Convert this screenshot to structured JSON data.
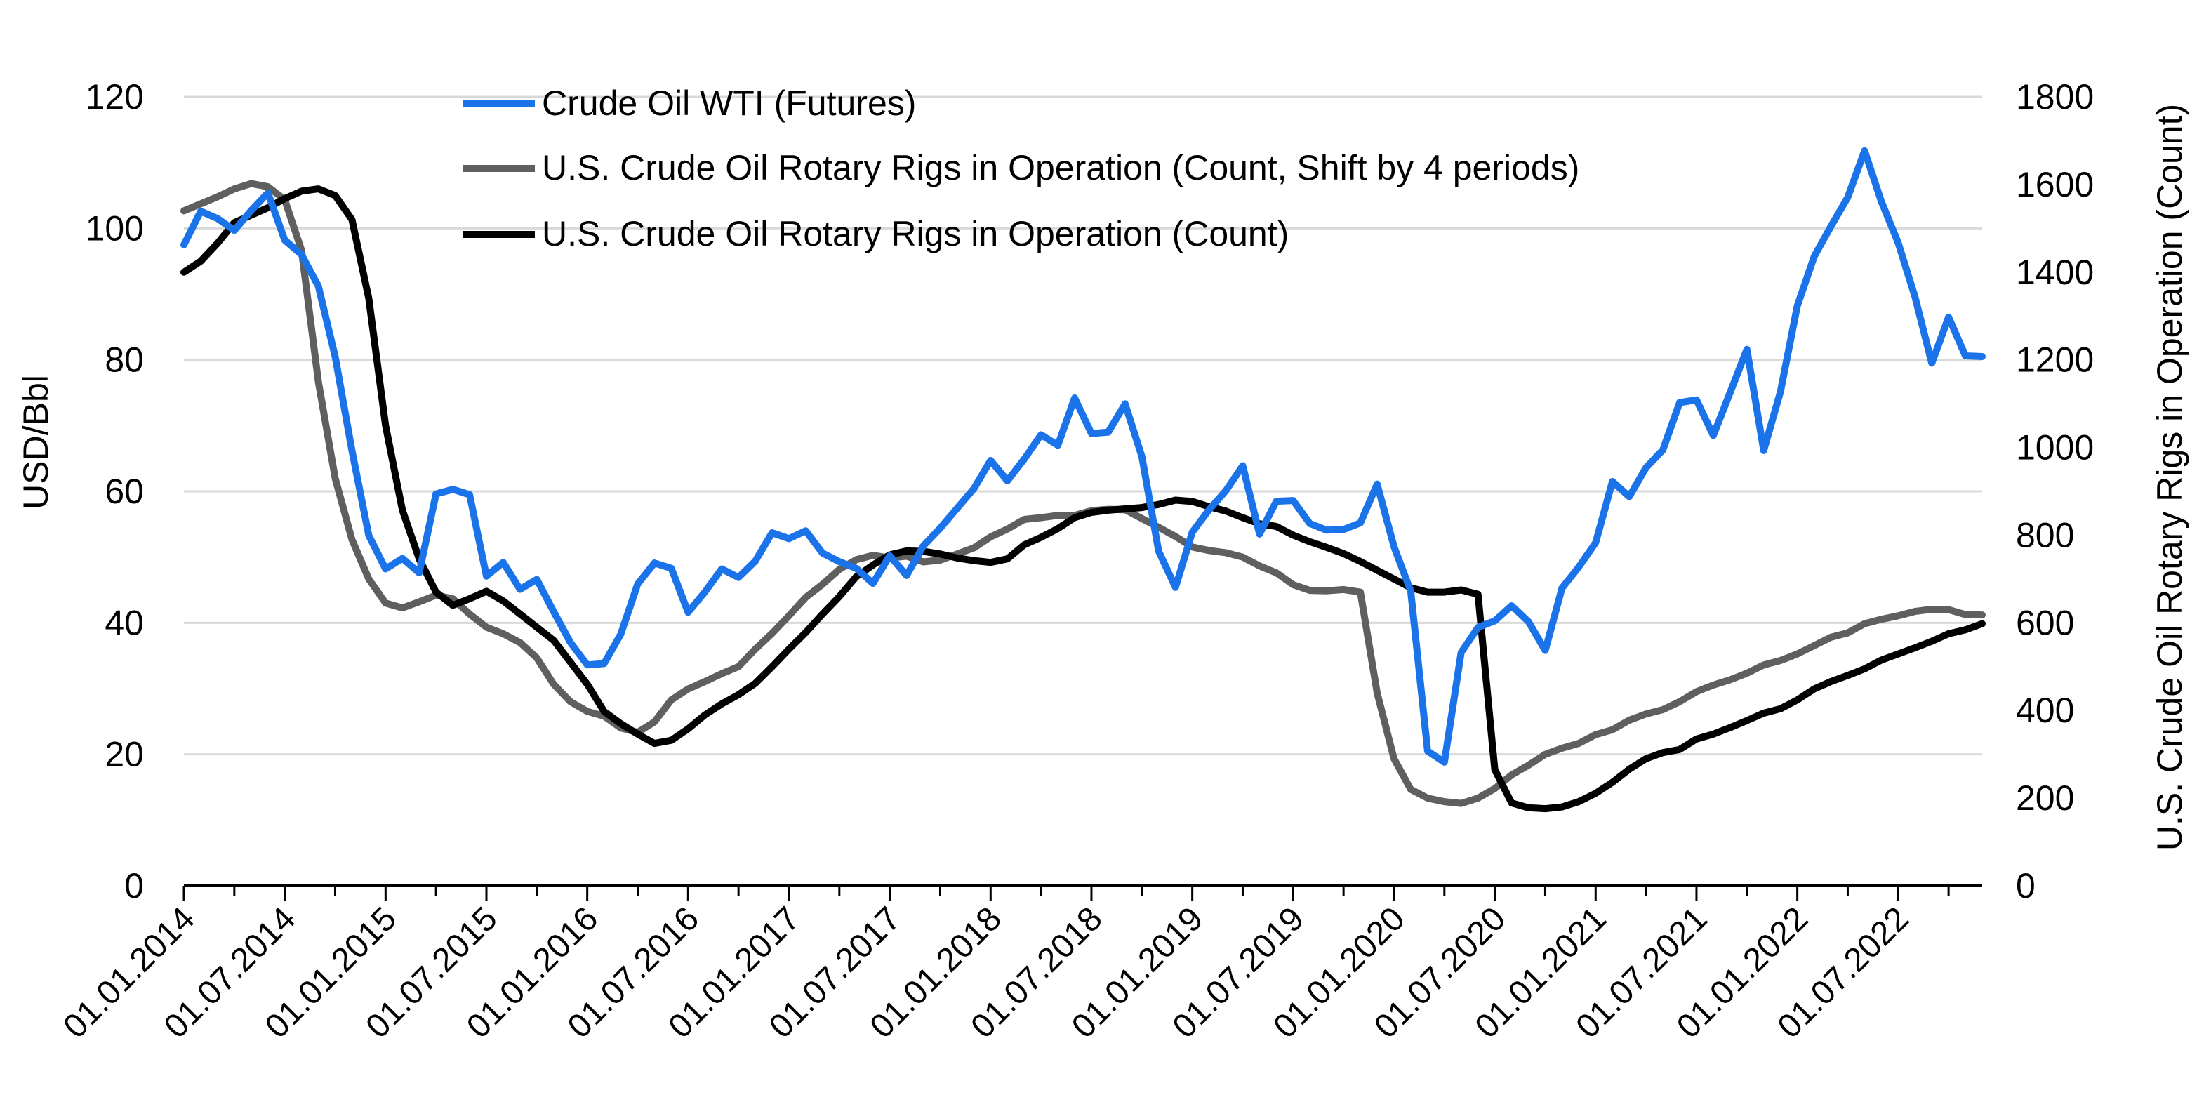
{
  "chart_data": {
    "type": "line",
    "title": "",
    "xlabel": "",
    "ylabel": "USD/Bbl",
    "y2label": "U.S. Crude Oil Rotary Rigs in Operation (Count)",
    "ylim": [
      0,
      120
    ],
    "y2lim": [
      0,
      1800
    ],
    "yticks": [
      "0",
      "20",
      "40",
      "60",
      "80",
      "100",
      "120"
    ],
    "y2ticks": [
      "0",
      "200",
      "400",
      "600",
      "800",
      "1000",
      "1200",
      "1400",
      "1600",
      "1800"
    ],
    "xticks": [
      "01.01.2014",
      "01.07.2014",
      "01.01.2015",
      "01.07.2015",
      "01.01.2016",
      "01.07.2016",
      "01.01.2017",
      "01.07.2017",
      "01.01.2018",
      "01.07.2018",
      "01.01.2019",
      "01.07.2019",
      "01.01.2020",
      "01.07.2020",
      "01.01.2021",
      "01.07.2021",
      "01.01.2022",
      "01.07.2022"
    ],
    "grid": "horizontal",
    "legend_position": "top-left",
    "x_start": "2014-01",
    "series": [
      {
        "name": "Crude Oil WTI (Futures)",
        "axis": "left",
        "color": "#1a73e8",
        "values": [
          97.5,
          102.6,
          101.5,
          99.7,
          102.7,
          105.4,
          98.2,
          96,
          91.2,
          80.5,
          66.2,
          53.3,
          48.2,
          49.8,
          47.6,
          59.6,
          60.3,
          59.5,
          47.1,
          49.2,
          45.1,
          46.6,
          41.7,
          37,
          33.6,
          33.8,
          38.3,
          45.9,
          49.1,
          48.3,
          41.6,
          44.7,
          48.2,
          46.9,
          49.4,
          53.7,
          52.8,
          54,
          50.6,
          49.3,
          48.3,
          46,
          50.2,
          47.2,
          51.7,
          54.4,
          57.4,
          60.4,
          64.7,
          61.6,
          64.9,
          68.6,
          67,
          74.2,
          68.8,
          69,
          73.3,
          65.3,
          50.9,
          45.4,
          53.8,
          57.2,
          60.1,
          63.9,
          53.5,
          58.5,
          58.6,
          55.1,
          54.1,
          54.2,
          55.2,
          61.1,
          51.6,
          44.8,
          20.5,
          18.8,
          35.5,
          39.3,
          40.3,
          42.6,
          40.2,
          35.8,
          45.3,
          48.5,
          52.2,
          61.5,
          59.2,
          63.6,
          66.3,
          73.5,
          73.9,
          68.5,
          75,
          81.6,
          66.2,
          75.2,
          88.2,
          95.7,
          100.3,
          104.7,
          111.8,
          104.1,
          97.8,
          89.6,
          79.5,
          86.5,
          80.6,
          80.5
        ]
      },
      {
        "name": "U.S. Crude Oil Rotary Rigs in Operation (Count, Shift by 4 periods)",
        "axis": "right",
        "color": "#5f5f5f",
        "values": [
          1540,
          1556,
          1572,
          1590,
          1602,
          1595,
          1565,
          1450,
          1150,
          930,
          790,
          700,
          645,
          634,
          648,
          663,
          655,
          620,
          590,
          575,
          555,
          520,
          460,
          420,
          398,
          387,
          360,
          350,
          374,
          424,
          449,
          466,
          484,
          500,
          540,
          576,
          616,
          658,
          688,
          722,
          744,
          754,
          748,
          752,
          739,
          743,
          757,
          771,
          796,
          814,
          836,
          840,
          845,
          845,
          856,
          859,
          858,
          838,
          818,
          797,
          773,
          765,
          760,
          750,
          730,
          714,
          687,
          674,
          673,
          676,
          670,
          440,
          290,
          220,
          200,
          192,
          188,
          200,
          222,
          253,
          275,
          300,
          314,
          325,
          345,
          356,
          378,
          392,
          402,
          420,
          443,
          458,
          470,
          485,
          504,
          514,
          529,
          548,
          567,
          577,
          598,
          608,
          616,
          626,
          631,
          630,
          619,
          618
        ]
      },
      {
        "name": "U.S. Crude Oil Rotary Rigs in Operation (Count)",
        "axis": "right",
        "color": "#000000",
        "values": [
          1400,
          1425,
          1466,
          1513,
          1530,
          1547,
          1568,
          1585,
          1590,
          1575,
          1520,
          1340,
          1050,
          857,
          746,
          670,
          640,
          655,
          672,
          650,
          620,
          590,
          560,
          510,
          460,
          398,
          370,
          346,
          325,
          332,
          358,
          390,
          415,
          436,
          462,
          500,
          540,
          578,
          620,
          660,
          705,
          732,
          755,
          764,
          763,
          757,
          748,
          742,
          738,
          746,
          778,
          795,
          815,
          840,
          852,
          857,
          860,
          863,
          870,
          880,
          877,
          865,
          855,
          840,
          826,
          820,
          800,
          785,
          772,
          758,
          740,
          720,
          700,
          680,
          670,
          670,
          675,
          665,
          265,
          189,
          178,
          176,
          180,
          192,
          211,
          236,
          266,
          290,
          304,
          311,
          335,
          346,
          361,
          377,
          394,
          404,
          424,
          449,
          466,
          480,
          495,
          515,
          529,
          543,
          558,
          575,
          584,
          598
        ]
      }
    ]
  }
}
